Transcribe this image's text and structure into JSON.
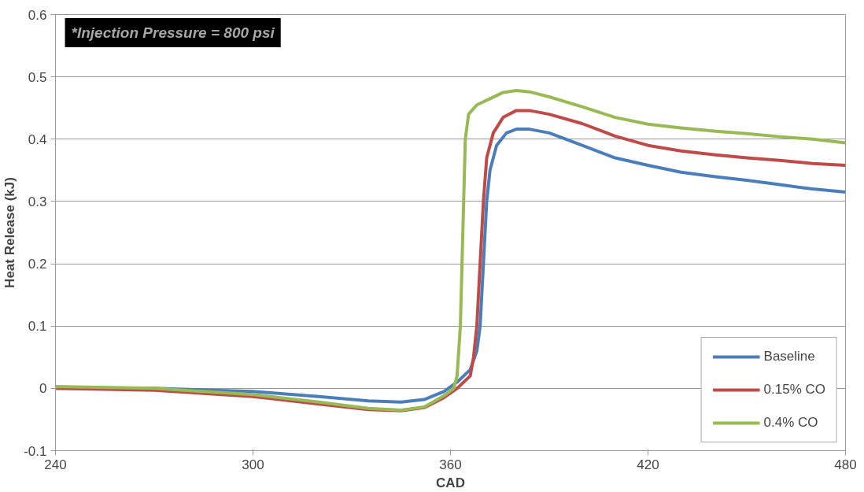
{
  "chart_data": {
    "type": "line",
    "xlabel": "CAD",
    "ylabel": "Heat Release (kJ)",
    "annotations": [
      "*Injection Pressure = 800 psi"
    ],
    "xlim": [
      240,
      480
    ],
    "xticks": [
      240,
      300,
      360,
      420,
      480
    ],
    "ylim": [
      -0.1,
      0.6
    ],
    "yticks": [
      {
        "value": -0.1,
        "label": "-0.1"
      },
      {
        "value": 0,
        "label": "0"
      },
      {
        "value": 0.1,
        "label": "0.1"
      },
      {
        "value": 0.2,
        "label": "0.2"
      },
      {
        "value": 0.3,
        "label": "0.3"
      },
      {
        "value": 0.4,
        "label": "0.4"
      },
      {
        "value": 0.5,
        "label": "0.5"
      },
      {
        "value": 0.6,
        "label": "0.6"
      }
    ],
    "grid": "y",
    "legend": "bottom right",
    "marker": "none",
    "line_style": "solid",
    "series": [
      {
        "name": "Baseline",
        "color": "#4a7ebb",
        "x": [
          240,
          270,
          300,
          320,
          335,
          345,
          352,
          358,
          362,
          366,
          368,
          369,
          370,
          371,
          372,
          374,
          377,
          380,
          384,
          390,
          400,
          410,
          420,
          430,
          440,
          450,
          460,
          470,
          480
        ],
        "values": [
          0,
          0,
          -0.005,
          -0.013,
          -0.02,
          -0.022,
          -0.018,
          -0.005,
          0.01,
          0.03,
          0.06,
          0.1,
          0.2,
          0.3,
          0.35,
          0.39,
          0.41,
          0.416,
          0.416,
          0.41,
          0.39,
          0.37,
          0.358,
          0.347,
          0.34,
          0.334,
          0.327,
          0.32,
          0.315
        ]
      },
      {
        "name": "0.15% CO",
        "color": "#be4b48",
        "x": [
          240,
          270,
          300,
          320,
          335,
          345,
          352,
          358,
          362,
          366,
          367,
          368,
          369,
          370,
          371,
          373,
          376,
          380,
          384,
          390,
          400,
          410,
          420,
          430,
          440,
          450,
          460,
          470,
          480
        ],
        "values": [
          0,
          -0.003,
          -0.013,
          -0.025,
          -0.034,
          -0.036,
          -0.031,
          -0.015,
          0,
          0.02,
          0.05,
          0.1,
          0.2,
          0.3,
          0.37,
          0.41,
          0.435,
          0.446,
          0.446,
          0.44,
          0.425,
          0.405,
          0.39,
          0.381,
          0.375,
          0.37,
          0.366,
          0.361,
          0.358
        ]
      },
      {
        "name": "0.4% CO",
        "color": "#98b954",
        "x": [
          240,
          270,
          300,
          320,
          335,
          345,
          352,
          358,
          361,
          362,
          363,
          363.5,
          364,
          364.5,
          365.5,
          368,
          372,
          376,
          380,
          384,
          390,
          400,
          410,
          420,
          430,
          440,
          450,
          460,
          470,
          480
        ],
        "values": [
          0.003,
          0,
          -0.01,
          -0.022,
          -0.032,
          -0.035,
          -0.03,
          -0.012,
          0,
          0.02,
          0.1,
          0.2,
          0.3,
          0.4,
          0.44,
          0.455,
          0.465,
          0.475,
          0.478,
          0.476,
          0.468,
          0.452,
          0.435,
          0.424,
          0.418,
          0.413,
          0.409,
          0.404,
          0.4,
          0.394
        ]
      }
    ]
  }
}
